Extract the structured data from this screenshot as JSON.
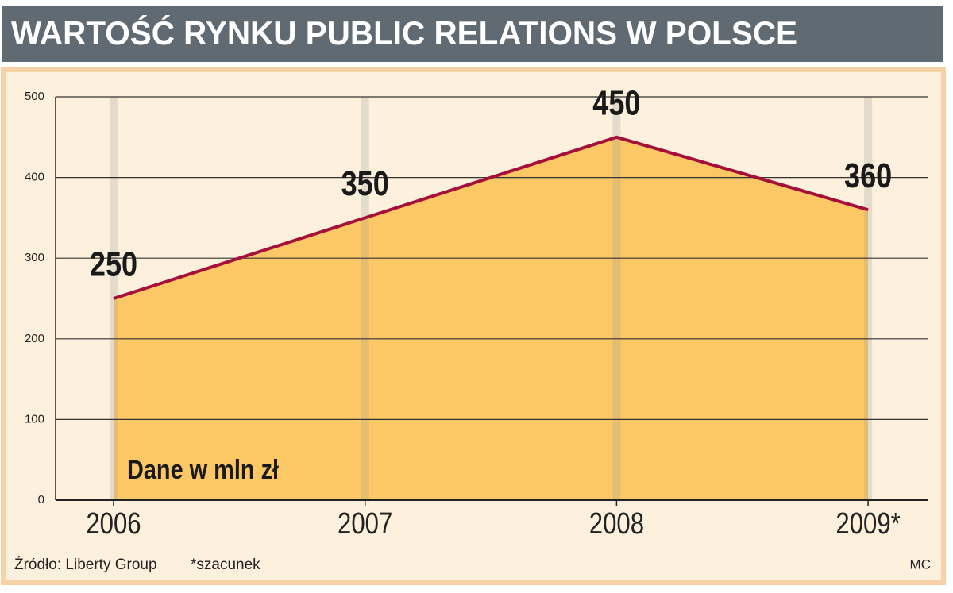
{
  "chart_data": {
    "type": "area",
    "title": "WARTOŚĆ RYNKU PUBLIC RELATIONS W POLSCE",
    "annotation": "Dane w mln zł",
    "source": "Źródło: Liberty Group",
    "note": "*szacunek",
    "credit": "MC",
    "categories": [
      "2006",
      "2007",
      "2008",
      "2009*"
    ],
    "values": [
      250,
      350,
      450,
      360
    ],
    "color": "#a50f3a",
    "fill_color": "#fcc35a",
    "ylim": [
      0,
      500
    ],
    "yticks": [
      0,
      100,
      200,
      300,
      400,
      500
    ],
    "grid": true
  }
}
